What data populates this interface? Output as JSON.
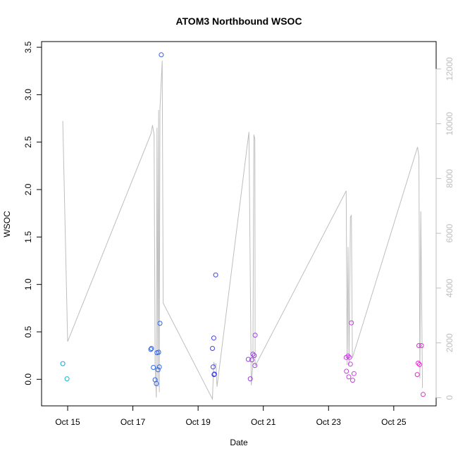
{
  "chart_data": {
    "type": "scatter",
    "title": "ATOM3 Northbound WSOC",
    "xlabel": "Date",
    "ylabel": "WSOC",
    "x_tick_labels": [
      {
        "day": 14.9,
        "label": "Oct 15"
      },
      {
        "day": 16.9,
        "label": "Oct 17"
      },
      {
        "day": 18.9,
        "label": "Oct 19"
      },
      {
        "day": 20.9,
        "label": "Oct 21"
      },
      {
        "day": 22.9,
        "label": "Oct 23"
      },
      {
        "day": 24.9,
        "label": "Oct 25"
      }
    ],
    "xlim_day": [
      14.1,
      26.2
    ],
    "ylim": [
      -0.28,
      3.56
    ],
    "y_ticks": [
      {
        "value": 0.0,
        "label": "0.0"
      },
      {
        "value": 0.5,
        "label": "0.5"
      },
      {
        "value": 1.0,
        "label": "1.0"
      },
      {
        "value": 1.5,
        "label": "1.5"
      },
      {
        "value": 2.0,
        "label": "2.0"
      },
      {
        "value": 2.5,
        "label": "2.5"
      },
      {
        "value": 3.0,
        "label": "3.0"
      },
      {
        "value": 3.5,
        "label": "3.5"
      }
    ],
    "y2_lim": [
      -300,
      13000
    ],
    "y2_ticks": [
      {
        "value": 0,
        "label": "0"
      },
      {
        "value": 2000,
        "label": "2000"
      },
      {
        "value": 4000,
        "label": "4000"
      },
      {
        "value": 6000,
        "label": "6000"
      },
      {
        "value": 8000,
        "label": "8000"
      },
      {
        "value": 10000,
        "label": "10000"
      },
      {
        "value": 12000,
        "label": "12000"
      }
    ],
    "grid": false,
    "colors": {
      "axis": "#000000",
      "line": "#bebebe",
      "secondary_axis": "#bebebe"
    },
    "points": [
      {
        "x": 14.75,
        "y": 0.165,
        "color": "#1f9fd8"
      },
      {
        "x": 14.88,
        "y": 0.005,
        "color": "#17b7d1"
      },
      {
        "x": 17.45,
        "y": 0.315,
        "color": "#2b62ee"
      },
      {
        "x": 17.47,
        "y": 0.325,
        "color": "#2b62ee"
      },
      {
        "x": 17.53,
        "y": 0.125,
        "color": "#2b62ee"
      },
      {
        "x": 17.58,
        "y": -0.005,
        "color": "#2b62ee"
      },
      {
        "x": 17.62,
        "y": -0.045,
        "color": "#2b62ee"
      },
      {
        "x": 17.64,
        "y": 0.28,
        "color": "#2b62ee"
      },
      {
        "x": 17.67,
        "y": 0.1,
        "color": "#2b62ee"
      },
      {
        "x": 17.69,
        "y": 0.285,
        "color": "#2b62ee"
      },
      {
        "x": 17.71,
        "y": 0.13,
        "color": "#2b62ee"
      },
      {
        "x": 17.73,
        "y": 0.59,
        "color": "#2b62ee"
      },
      {
        "x": 17.77,
        "y": 3.42,
        "color": "#3359f0"
      },
      {
        "x": 19.34,
        "y": 0.325,
        "color": "#3f41e0"
      },
      {
        "x": 19.36,
        "y": 0.13,
        "color": "#3f41e0"
      },
      {
        "x": 19.39,
        "y": 0.05,
        "color": "#3f41e0"
      },
      {
        "x": 19.4,
        "y": 0.055,
        "color": "#3f41e0"
      },
      {
        "x": 19.38,
        "y": 0.435,
        "color": "#3f41e0"
      },
      {
        "x": 19.44,
        "y": 1.1,
        "color": "#3f41e0"
      },
      {
        "x": 20.44,
        "y": 0.21,
        "color": "#9a3fe0"
      },
      {
        "x": 20.5,
        "y": 0.005,
        "color": "#9a3fe0"
      },
      {
        "x": 20.55,
        "y": 0.205,
        "color": "#9a3fe0"
      },
      {
        "x": 20.58,
        "y": 0.265,
        "color": "#9a3fe0"
      },
      {
        "x": 20.62,
        "y": 0.25,
        "color": "#9a3fe0"
      },
      {
        "x": 20.64,
        "y": 0.145,
        "color": "#9a3fe0"
      },
      {
        "x": 20.65,
        "y": 0.465,
        "color": "#9a3fe0"
      },
      {
        "x": 23.44,
        "y": 0.23,
        "color": "#c63fe0"
      },
      {
        "x": 23.45,
        "y": 0.085,
        "color": "#c63fe0"
      },
      {
        "x": 23.5,
        "y": 0.245,
        "color": "#c63fe0"
      },
      {
        "x": 23.52,
        "y": 0.025,
        "color": "#c63fe0"
      },
      {
        "x": 23.54,
        "y": 0.23,
        "color": "#c63fe0"
      },
      {
        "x": 23.57,
        "y": 0.16,
        "color": "#c63fe0"
      },
      {
        "x": 23.6,
        "y": 0.595,
        "color": "#c63fe0"
      },
      {
        "x": 23.64,
        "y": -0.01,
        "color": "#c63fe0"
      },
      {
        "x": 23.68,
        "y": 0.06,
        "color": "#c63fe0"
      },
      {
        "x": 25.62,
        "y": 0.05,
        "color": "#e22fcf"
      },
      {
        "x": 25.65,
        "y": 0.17,
        "color": "#e22fcf"
      },
      {
        "x": 25.67,
        "y": 0.355,
        "color": "#e22fcf"
      },
      {
        "x": 25.69,
        "y": 0.155,
        "color": "#e22fcf"
      },
      {
        "x": 25.75,
        "y": 0.355,
        "color": "#e22fcf"
      },
      {
        "x": 25.8,
        "y": -0.16,
        "color": "#e22fcf"
      }
    ],
    "line_series": [
      {
        "x": 14.75,
        "y2": 10100
      },
      {
        "x": 14.9,
        "y2": 2050
      },
      {
        "x": 17.46,
        "y2": 9650
      },
      {
        "x": 17.5,
        "y2": 9950
      },
      {
        "x": 17.55,
        "y2": 9600
      },
      {
        "x": 17.58,
        "y2": 1200
      },
      {
        "x": 17.62,
        "y2": 0
      },
      {
        "x": 17.64,
        "y2": 9850
      },
      {
        "x": 17.67,
        "y2": 400
      },
      {
        "x": 17.69,
        "y2": 10500
      },
      {
        "x": 17.71,
        "y2": 200
      },
      {
        "x": 17.73,
        "y2": 10550
      },
      {
        "x": 17.8,
        "y2": 12300
      },
      {
        "x": 17.83,
        "y2": 3450
      },
      {
        "x": 19.34,
        "y2": -50
      },
      {
        "x": 19.38,
        "y2": 1300
      },
      {
        "x": 19.42,
        "y2": 1150
      },
      {
        "x": 19.45,
        "y2": 1250
      },
      {
        "x": 19.48,
        "y2": 400
      },
      {
        "x": 20.46,
        "y2": 9700
      },
      {
        "x": 20.53,
        "y2": 450
      },
      {
        "x": 20.58,
        "y2": 1200
      },
      {
        "x": 20.61,
        "y2": 9600
      },
      {
        "x": 20.64,
        "y2": 9450
      },
      {
        "x": 20.65,
        "y2": 1150
      },
      {
        "x": 23.44,
        "y2": 7550
      },
      {
        "x": 23.47,
        "y2": 1200
      },
      {
        "x": 23.5,
        "y2": 5500
      },
      {
        "x": 23.53,
        "y2": 1200
      },
      {
        "x": 23.57,
        "y2": 6600
      },
      {
        "x": 23.6,
        "y2": 6650
      },
      {
        "x": 23.63,
        "y2": 1450
      },
      {
        "x": 25.63,
        "y2": 9150
      },
      {
        "x": 25.67,
        "y2": 8800
      },
      {
        "x": 25.7,
        "y2": 700
      },
      {
        "x": 25.73,
        "y2": 6800
      },
      {
        "x": 25.78,
        "y2": 350
      }
    ]
  }
}
